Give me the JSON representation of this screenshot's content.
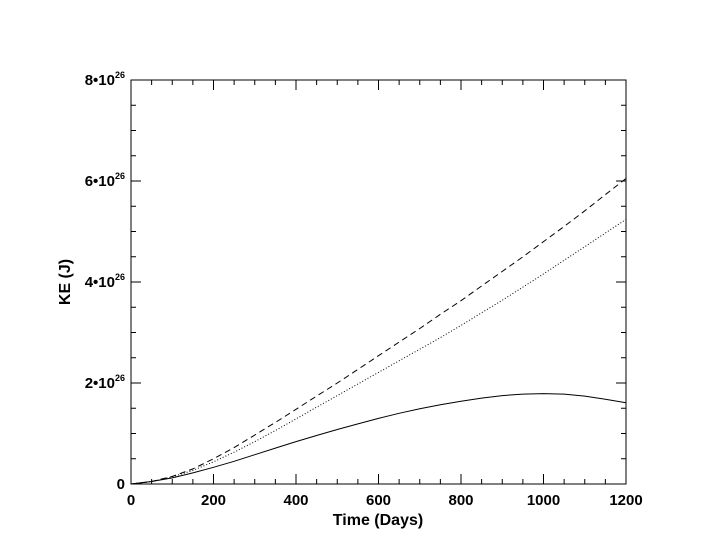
{
  "chart_data": {
    "type": "line",
    "title": "",
    "xlabel": "Time (Days)",
    "ylabel": "KE (J)",
    "xlim": [
      0,
      1200
    ],
    "ylim": [
      0,
      8e+26
    ],
    "x_ticks": [
      0,
      200,
      400,
      600,
      800,
      1000,
      1200
    ],
    "x_tick_labels": [
      "0",
      "200",
      "400",
      "600",
      "800",
      "1000",
      "1200"
    ],
    "y_ticks": [
      0,
      2e+26,
      4e+26,
      6e+26,
      8e+26
    ],
    "y_tick_labels": [
      {
        "mantissa": "0",
        "exponent": ""
      },
      {
        "mantissa": "2•10",
        "exponent": "26"
      },
      {
        "mantissa": "4•10",
        "exponent": "26"
      },
      {
        "mantissa": "6•10",
        "exponent": "26"
      },
      {
        "mantissa": "8•10",
        "exponent": "26"
      }
    ],
    "grid": false,
    "legend": false,
    "x": [
      0,
      50,
      100,
      150,
      200,
      250,
      300,
      350,
      400,
      450,
      500,
      550,
      600,
      650,
      700,
      750,
      800,
      850,
      900,
      950,
      1000,
      1050,
      1100,
      1150,
      1200
    ],
    "series": [
      {
        "style": "dashed",
        "color": "#000000",
        "values": [
          0,
          5e+24,
          1.5e+25,
          3e+25,
          5e+25,
          7.2e+25,
          9.7e+25,
          1.22e+26,
          1.48e+26,
          1.74e+26,
          2e+26,
          2.27e+26,
          2.54e+26,
          2.81e+26,
          3.08e+26,
          3.36e+26,
          3.63e+26,
          3.92e+26,
          4.21e+26,
          4.5e+26,
          4.8e+26,
          5.1e+26,
          5.41e+26,
          5.73e+26,
          6.05e+26
        ]
      },
      {
        "style": "dotted",
        "color": "#000000",
        "values": [
          0,
          5e+24,
          1.4e+25,
          2.7e+25,
          4.4e+25,
          6.3e+25,
          8.4e+25,
          1.06e+26,
          1.29e+26,
          1.52e+26,
          1.75e+26,
          1.98e+26,
          2.21e+26,
          2.44e+26,
          2.67e+26,
          2.9e+26,
          3.14e+26,
          3.39e+26,
          3.64e+26,
          3.9e+26,
          4.16e+26,
          4.43e+26,
          4.7e+26,
          4.97e+26,
          5.24e+26
        ]
      },
      {
        "style": "solid",
        "color": "#000000",
        "values": [
          0,
          5e+24,
          1.2e+25,
          2.2e+25,
          3.3e+25,
          4.5e+25,
          5.8e+25,
          7.1e+25,
          8.4e+25,
          9.6e+25,
          1.08e+26,
          1.19e+26,
          1.3e+26,
          1.4e+26,
          1.49e+26,
          1.57e+26,
          1.64e+26,
          1.7e+26,
          1.75e+26,
          1.78e+26,
          1.79e+26,
          1.78e+26,
          1.74e+26,
          1.68e+26,
          1.61e+26
        ]
      }
    ]
  }
}
